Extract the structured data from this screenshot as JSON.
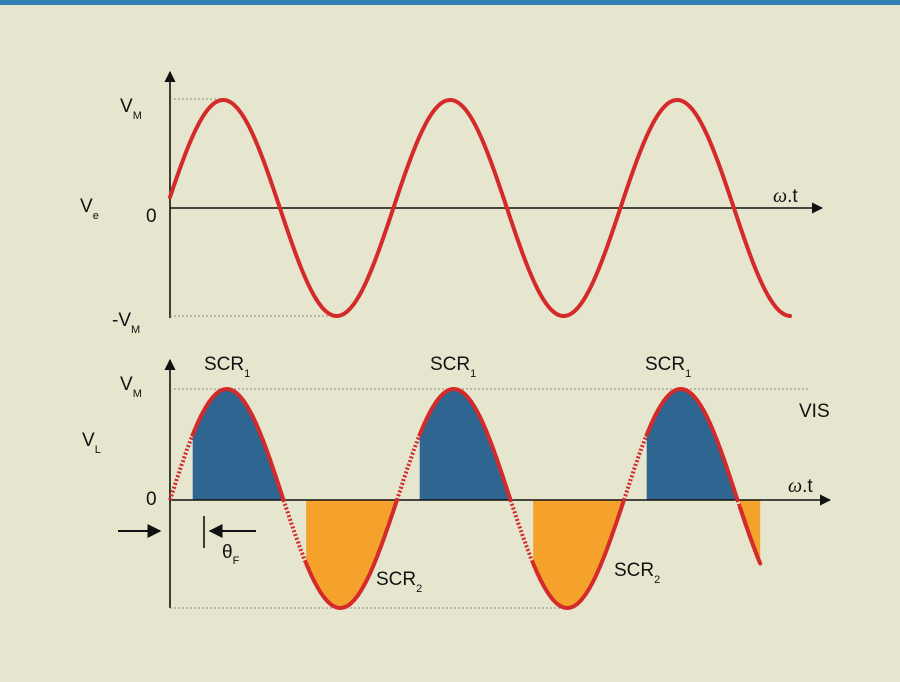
{
  "top_panel": {
    "y_label": "V",
    "y_label_sub": "e",
    "vmax_label": "V",
    "vmax_sub": "M",
    "vmin_label": "-V",
    "vmin_sub": "M",
    "zero_label": "0",
    "x_label_symbol": "ω",
    "x_label_rest": ".t"
  },
  "bottom_panel": {
    "y_label": "V",
    "y_label_sub": "L",
    "vmax_label": "V",
    "vmax_sub": "M",
    "zero_label": "0",
    "x_label_symbol": "ω",
    "x_label_rest": ".t",
    "vis_label": "VIS",
    "theta_label": "θ",
    "theta_sub": "F",
    "scr1_labels": [
      {
        "main": "SCR",
        "sub": "1"
      },
      {
        "main": "SCR",
        "sub": "1"
      },
      {
        "main": "SCR",
        "sub": "1"
      }
    ],
    "scr2_labels": [
      {
        "main": "SCR",
        "sub": "2"
      },
      {
        "main": "SCR",
        "sub": "2"
      }
    ]
  },
  "colors": {
    "wave": "#d42a2a",
    "positive_fill": "#2e6591",
    "negative_fill": "#f4a22c",
    "axis": "#111111",
    "background": "#e6e6cf",
    "accent_bar": "#2f7fb4"
  },
  "waveform": {
    "cycles_shown": 3,
    "firing_angle_fraction_of_half_cycle": 0.2
  }
}
